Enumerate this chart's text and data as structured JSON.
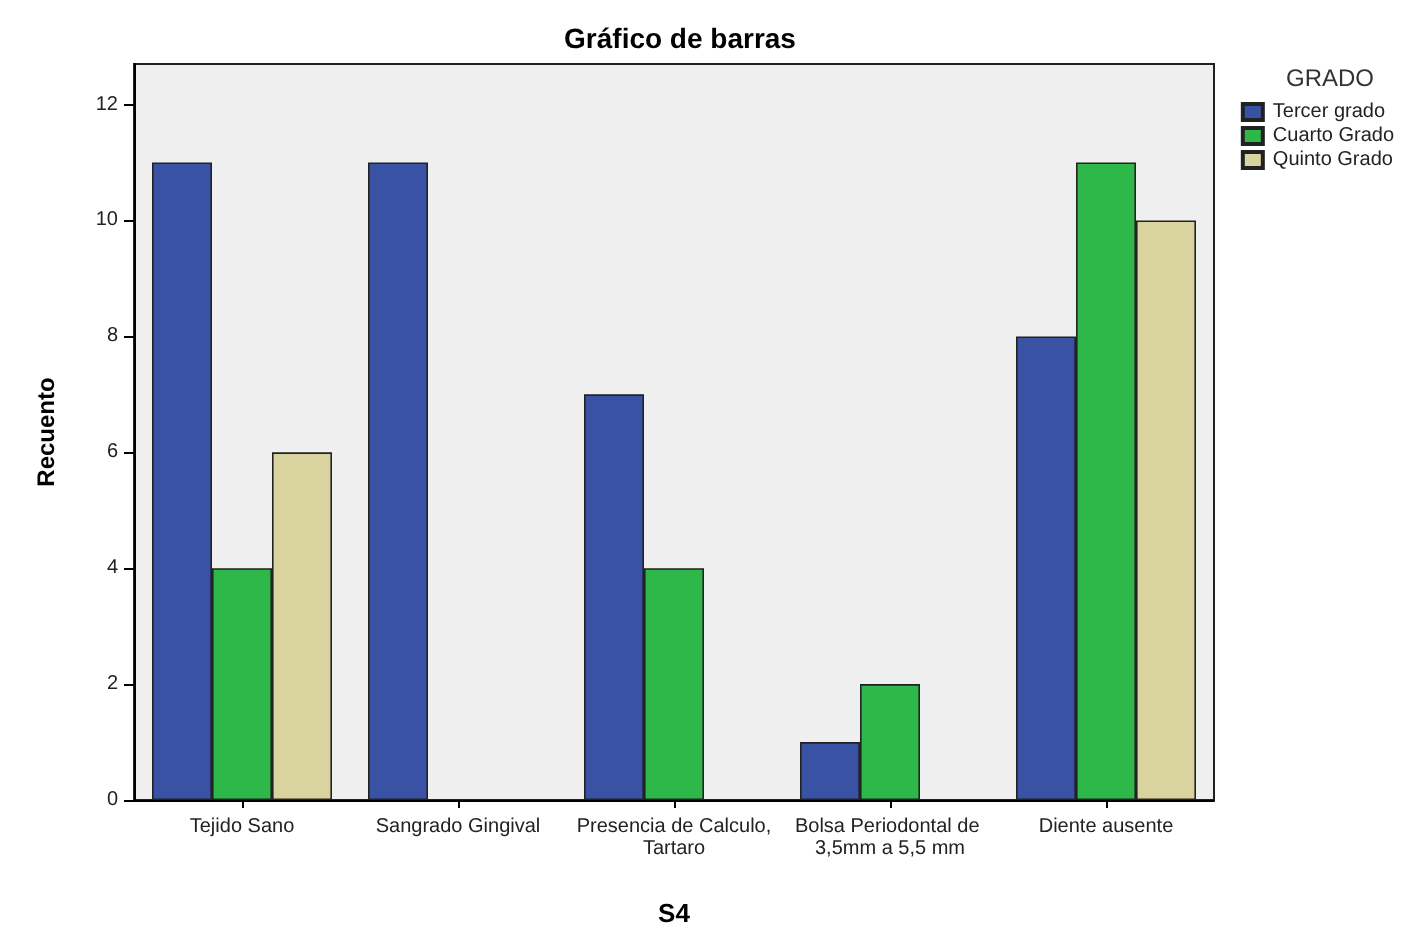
{
  "chart_data": {
    "type": "bar",
    "title": "Gráfico de barras",
    "xlabel": "S4",
    "ylabel": "Recuento",
    "legend_title": "GRADO",
    "categories": [
      "Tejido Sano",
      "Sangrado Gingival",
      "Presencia de Calculo,Tartaro",
      "Bolsa Periodontal de 3,5mm a 5,5 mm",
      "Diente ausente"
    ],
    "series": [
      {
        "name": "Tercer grado",
        "color": "#3a52a4",
        "values": [
          11,
          11,
          7,
          1,
          8
        ]
      },
      {
        "name": "Cuarto Grado",
        "color": "#2fb84a",
        "values": [
          4,
          null,
          4,
          2,
          11
        ]
      },
      {
        "name": "Quinto Grado",
        "color": "#d9d3a0",
        "values": [
          6,
          null,
          null,
          null,
          10
        ]
      }
    ],
    "ylim": [
      0,
      12.7
    ],
    "yticks": [
      0,
      2,
      4,
      6,
      8,
      10,
      12
    ],
    "grid": false,
    "legend": "top right"
  }
}
